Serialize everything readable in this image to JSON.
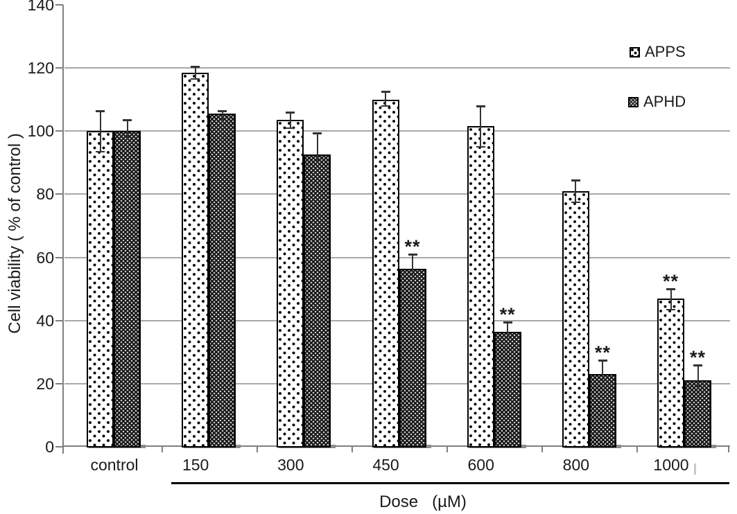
{
  "chart_data": {
    "type": "bar",
    "title": "",
    "ylabel": "Cell viability ( % of control )",
    "xlabel": "Dose   (µM)",
    "categories": [
      "control",
      "150",
      "300",
      "450",
      "600",
      "800",
      "1000"
    ],
    "series": [
      {
        "name": "APPS",
        "pattern": "white-with-black-dots",
        "values": [
          100,
          118.5,
          103.5,
          110,
          101.5,
          81,
          47
        ],
        "error_up": [
          6.5,
          2,
          2.5,
          2.5,
          6.5,
          3.5,
          3
        ],
        "error_down": [
          6.5,
          2,
          2.5,
          2,
          6.5,
          3.5,
          3.5
        ],
        "significance": [
          "",
          "",
          "",
          "",
          "",
          "",
          "**"
        ]
      },
      {
        "name": "APHD",
        "pattern": "black-with-white-dots",
        "values": [
          100,
          105.5,
          92.5,
          56.5,
          36.5,
          23,
          21
        ],
        "error_up": [
          3.5,
          1,
          7,
          4.5,
          3,
          4.5,
          5
        ],
        "error_down": [
          0,
          0,
          0,
          0,
          0,
          0,
          0
        ],
        "significance": [
          "",
          "",
          "",
          "**",
          "**",
          "**",
          "**"
        ]
      }
    ],
    "ylim": [
      0,
      140
    ],
    "ytick_step": 20,
    "grid": true,
    "legend_position": "top-right",
    "colors": {
      "axis": "#7f7f7f",
      "gridline": "#a8a8a8",
      "text": "#1a1a1a",
      "bar_border": "#000000",
      "error_bar": "#333333",
      "shadow": "#8c8c8c",
      "background": "#ffffff"
    }
  }
}
